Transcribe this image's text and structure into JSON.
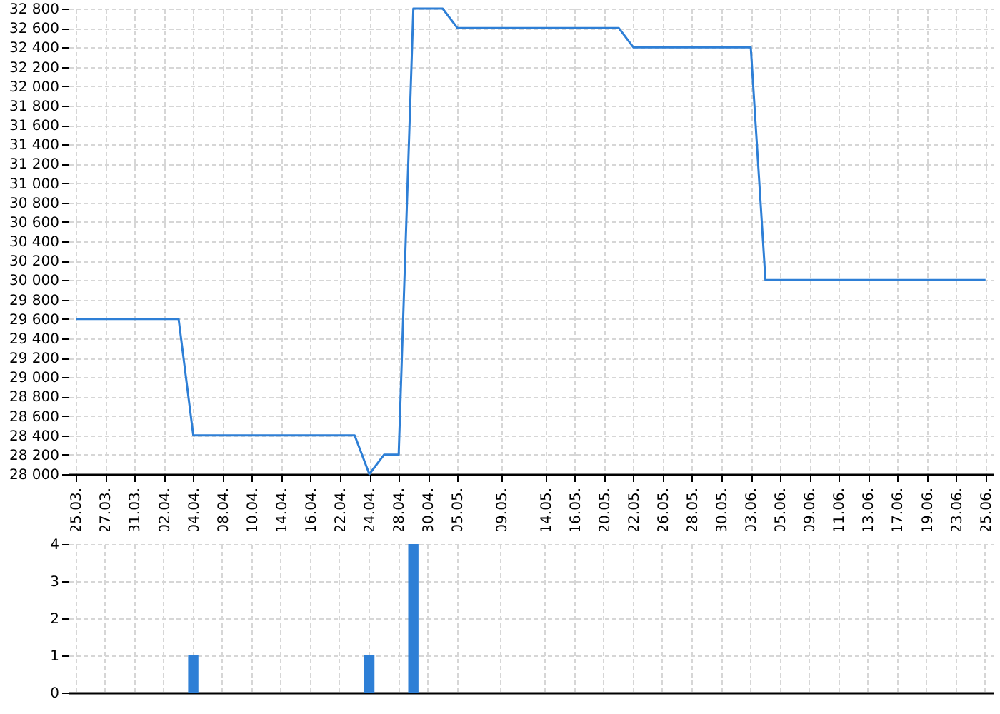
{
  "chart_data": [
    {
      "type": "line",
      "categories": [
        "25.03.",
        null,
        "27.03.",
        null,
        "31.03.",
        null,
        "02.04.",
        null,
        "04.04.",
        null,
        "08.04.",
        null,
        "10.04.",
        null,
        "14.04.",
        null,
        "16.04.",
        null,
        "22.04.",
        null,
        "24.04.",
        null,
        "28.04.",
        null,
        "30.04.",
        null,
        "05.05.",
        null,
        null,
        "09.05.",
        null,
        null,
        "14.05.",
        null,
        "16.05.",
        null,
        "20.05.",
        null,
        "22.05.",
        null,
        "26.05.",
        null,
        "28.05.",
        null,
        "30.05.",
        null,
        "03.06.",
        null,
        "05.06.",
        null,
        "09.06.",
        null,
        "11.06.",
        null,
        "13.06.",
        null,
        "17.06.",
        null,
        "19.06.",
        null,
        "23.06.",
        null,
        "25.06."
      ],
      "series": [
        {
          "color": "#2e7fd6",
          "values": [
            29600,
            29600,
            29600,
            29600,
            29600,
            29600,
            29600,
            29600,
            28400,
            28400,
            28400,
            28400,
            28400,
            28400,
            28400,
            28400,
            28400,
            28400,
            28400,
            28400,
            28000,
            28200,
            28200,
            32800,
            32800,
            32800,
            32600,
            32600,
            32600,
            32600,
            32600,
            32600,
            32600,
            32600,
            32600,
            32600,
            32600,
            32600,
            32400,
            32400,
            32400,
            32400,
            32400,
            32400,
            32400,
            32400,
            32400,
            30000,
            30000,
            30000,
            30000,
            30000,
            30000,
            30000,
            30000,
            30000,
            30000,
            30000,
            30000,
            30000,
            30000,
            30000,
            30000
          ]
        }
      ],
      "ylim": [
        28000,
        32800
      ],
      "yticks": [
        {
          "value": 28000,
          "label": "28 000"
        },
        {
          "value": 28200,
          "label": "28 200"
        },
        {
          "value": 28400,
          "label": "28 400"
        },
        {
          "value": 28600,
          "label": "28 600"
        },
        {
          "value": 28800,
          "label": "28 800"
        },
        {
          "value": 29000,
          "label": "29 000"
        },
        {
          "value": 29200,
          "label": "29 200"
        },
        {
          "value": 29400,
          "label": "29 400"
        },
        {
          "value": 29600,
          "label": "29 600"
        },
        {
          "value": 29800,
          "label": "29 800"
        },
        {
          "value": 30000,
          "label": "30 000"
        },
        {
          "value": 30200,
          "label": "30 200"
        },
        {
          "value": 30400,
          "label": "30 400"
        },
        {
          "value": 30600,
          "label": "30 600"
        },
        {
          "value": 30800,
          "label": "30 800"
        },
        {
          "value": 31000,
          "label": "31 000"
        },
        {
          "value": 31200,
          "label": "31 200"
        },
        {
          "value": 31400,
          "label": "31 400"
        },
        {
          "value": 31600,
          "label": "31 600"
        },
        {
          "value": 31800,
          "label": "31 800"
        },
        {
          "value": 32000,
          "label": "32 000"
        },
        {
          "value": 32200,
          "label": "32 200"
        },
        {
          "value": 32400,
          "label": "32 400"
        },
        {
          "value": 32600,
          "label": "32 600"
        },
        {
          "value": 32800,
          "label": "32 800"
        }
      ],
      "grid": true
    },
    {
      "type": "bar",
      "categories": [
        "25.03.",
        null,
        "27.03.",
        null,
        "31.03.",
        null,
        "02.04.",
        null,
        "04.04.",
        null,
        "08.04.",
        null,
        "10.04.",
        null,
        "14.04.",
        null,
        "16.04.",
        null,
        "22.04.",
        null,
        "24.04.",
        null,
        "28.04.",
        null,
        "30.04.",
        null,
        "05.05.",
        null,
        null,
        "09.05.",
        null,
        null,
        "14.05.",
        null,
        "16.05.",
        null,
        "20.05.",
        null,
        "22.05.",
        null,
        "26.05.",
        null,
        "28.05.",
        null,
        "30.05.",
        null,
        "03.06.",
        null,
        "05.06.",
        null,
        "09.06.",
        null,
        "11.06.",
        null,
        "13.06.",
        null,
        "17.06.",
        null,
        "19.06.",
        null,
        "23.06.",
        null,
        "25.06."
      ],
      "series": [
        {
          "color": "#2e7fd6",
          "values": [
            0,
            0,
            0,
            0,
            0,
            0,
            0,
            0,
            1,
            0,
            0,
            0,
            0,
            0,
            0,
            0,
            0,
            0,
            0,
            0,
            1,
            0,
            0,
            4,
            0,
            0,
            0,
            0,
            0,
            0,
            0,
            0,
            0,
            0,
            0,
            0,
            0,
            0,
            0,
            0,
            0,
            0,
            0,
            0,
            0,
            0,
            0,
            0,
            0,
            0,
            0,
            0,
            0,
            0,
            0,
            0,
            0,
            0,
            0,
            0,
            0,
            0,
            0
          ]
        }
      ],
      "ylim": [
        0,
        4
      ],
      "yticks": [
        0,
        1,
        2,
        3,
        4
      ],
      "grid": true,
      "tick_labels": "y"
    }
  ]
}
